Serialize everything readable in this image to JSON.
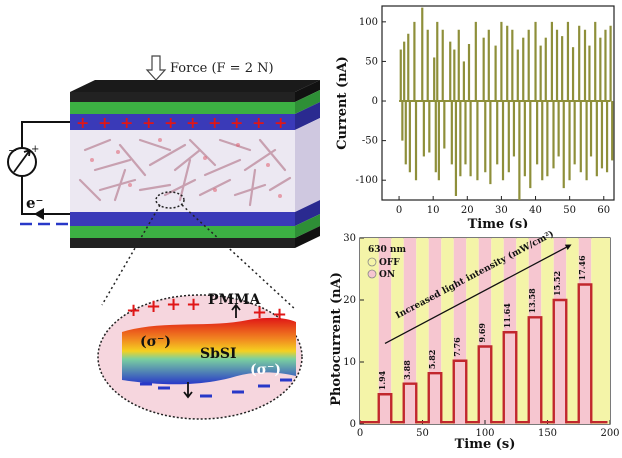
{
  "device": {
    "force_label": "Force (F = 2 N)",
    "electron_label": "e⁻",
    "pmma_label": "PMMA",
    "sbsi_label": "SbSI",
    "sigma_minus_label": "(σ⁻)",
    "sigma_label": "(σ⁻)"
  },
  "chart_data": [
    {
      "type": "line",
      "xlabel": "Time (s)",
      "ylabel": "Current (nA)",
      "xlim": [
        -5,
        63
      ],
      "ylim": [
        -125,
        120
      ],
      "xticks": [
        0,
        10,
        20,
        30,
        40,
        50,
        60
      ],
      "yticks": [
        -100,
        -50,
        0,
        50,
        100
      ],
      "color": "#8e8f3a",
      "x": [
        0.5,
        1.5,
        2.7,
        4.5,
        6.8,
        8.4,
        10.3,
        11.2,
        12.8,
        15,
        16.2,
        17.5,
        19,
        20.5,
        22.5,
        24.8,
        26.3,
        28.3,
        30,
        31.7,
        33.2,
        34.8,
        36.4,
        38,
        40,
        41.5,
        43,
        44.8,
        46.3,
        47.8,
        49.5,
        51,
        52.8,
        54.5,
        55.8,
        57.5,
        59,
        60.5,
        62
      ],
      "peaks": [
        65,
        75,
        85,
        100,
        118,
        90,
        55,
        100,
        90,
        75,
        65,
        90,
        50,
        72,
        100,
        80,
        90,
        70,
        100,
        95,
        90,
        65,
        80,
        90,
        100,
        70,
        80,
        100,
        90,
        82,
        100,
        68,
        95,
        90,
        70,
        100,
        80,
        90,
        95
      ],
      "troughs": [
        -50,
        -80,
        -90,
        -100,
        -70,
        -65,
        -90,
        -100,
        -60,
        -80,
        -120,
        -95,
        -80,
        -95,
        -100,
        -90,
        -105,
        -80,
        -100,
        -90,
        -70,
        -125,
        -95,
        -110,
        -80,
        -100,
        -95,
        -85,
        -70,
        -110,
        -100,
        -80,
        -90,
        -100,
        -70,
        -95,
        -85,
        -90,
        -75
      ]
    },
    {
      "type": "line",
      "xlabel": "Time (s)",
      "ylabel": "Photocurrent (nA)",
      "xlim": [
        0,
        200
      ],
      "ylim": [
        0,
        30
      ],
      "xticks": [
        0,
        50,
        100,
        150,
        200
      ],
      "yticks": [
        0,
        10,
        20,
        30
      ],
      "color": "#c1272d",
      "legend_title": "630 nm",
      "legend": [
        "OFF",
        "ON"
      ],
      "legend_colors": [
        "#f4f4a8",
        "#f6c6d0"
      ],
      "annotation": "Increased light intensity (mW/cm²)",
      "pulses": [
        {
          "start": 15,
          "end": 25,
          "value": 4.8,
          "label": "1.94"
        },
        {
          "start": 35,
          "end": 45,
          "value": 6.5,
          "label": "3.88"
        },
        {
          "start": 55,
          "end": 65,
          "value": 8.2,
          "label": "5.82"
        },
        {
          "start": 75,
          "end": 85,
          "value": 10.2,
          "label": "7.76"
        },
        {
          "start": 95,
          "end": 105,
          "value": 12.5,
          "label": "9.69"
        },
        {
          "start": 115,
          "end": 125,
          "value": 14.8,
          "label": "11.64"
        },
        {
          "start": 135,
          "end": 145,
          "value": 17.2,
          "label": "13.58"
        },
        {
          "start": 155,
          "end": 165,
          "value": 20.0,
          "label": "15.52"
        },
        {
          "start": 175,
          "end": 185,
          "value": 22.5,
          "label": "17.46"
        }
      ]
    }
  ]
}
